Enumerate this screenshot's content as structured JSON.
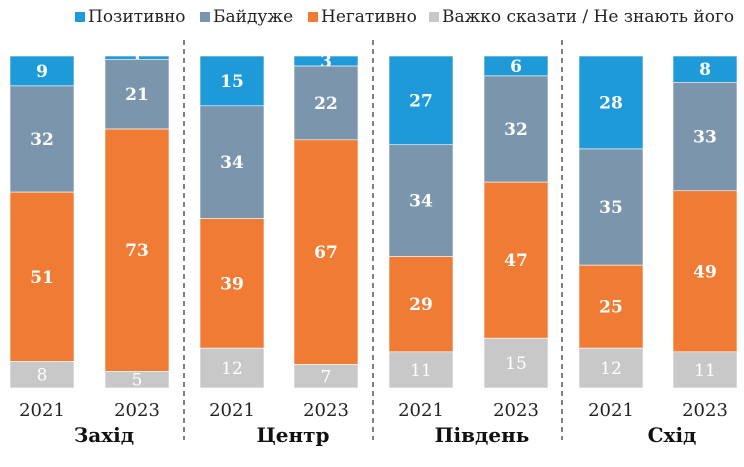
{
  "chart_data": {
    "type": "bar",
    "stacked": true,
    "grid": false,
    "legend_placement": "top",
    "title": "",
    "xlabel": "",
    "ylabel": "",
    "ylim": [
      0,
      100
    ],
    "series": [
      {
        "name": "Позитивно",
        "color": "#1f9ad8"
      },
      {
        "name": "Байдуже",
        "color": "#7b95ad"
      },
      {
        "name": "Негативно",
        "color": "#f07b34"
      },
      {
        "name": "Важко сказати / Не знають його",
        "color": "#c8c8c8"
      }
    ],
    "groups": [
      {
        "region": "Захід",
        "bars": [
          {
            "year": "2021",
            "values": [
              9,
              32,
              51,
              8
            ]
          },
          {
            "year": "2023",
            "values": [
              1,
              21,
              73,
              5
            ]
          }
        ]
      },
      {
        "region": "Центр",
        "bars": [
          {
            "year": "2021",
            "values": [
              15,
              34,
              39,
              12
            ]
          },
          {
            "year": "2023",
            "values": [
              3,
              22,
              67,
              7
            ]
          }
        ]
      },
      {
        "region": "Південь",
        "bars": [
          {
            "year": "2021",
            "values": [
              27,
              34,
              29,
              11
            ]
          },
          {
            "year": "2023",
            "values": [
              6,
              32,
              47,
              15
            ]
          }
        ]
      },
      {
        "region": "Схід",
        "bars": [
          {
            "year": "2021",
            "values": [
              28,
              35,
              25,
              12
            ]
          },
          {
            "year": "2023",
            "values": [
              8,
              33,
              49,
              11
            ]
          }
        ]
      }
    ]
  }
}
